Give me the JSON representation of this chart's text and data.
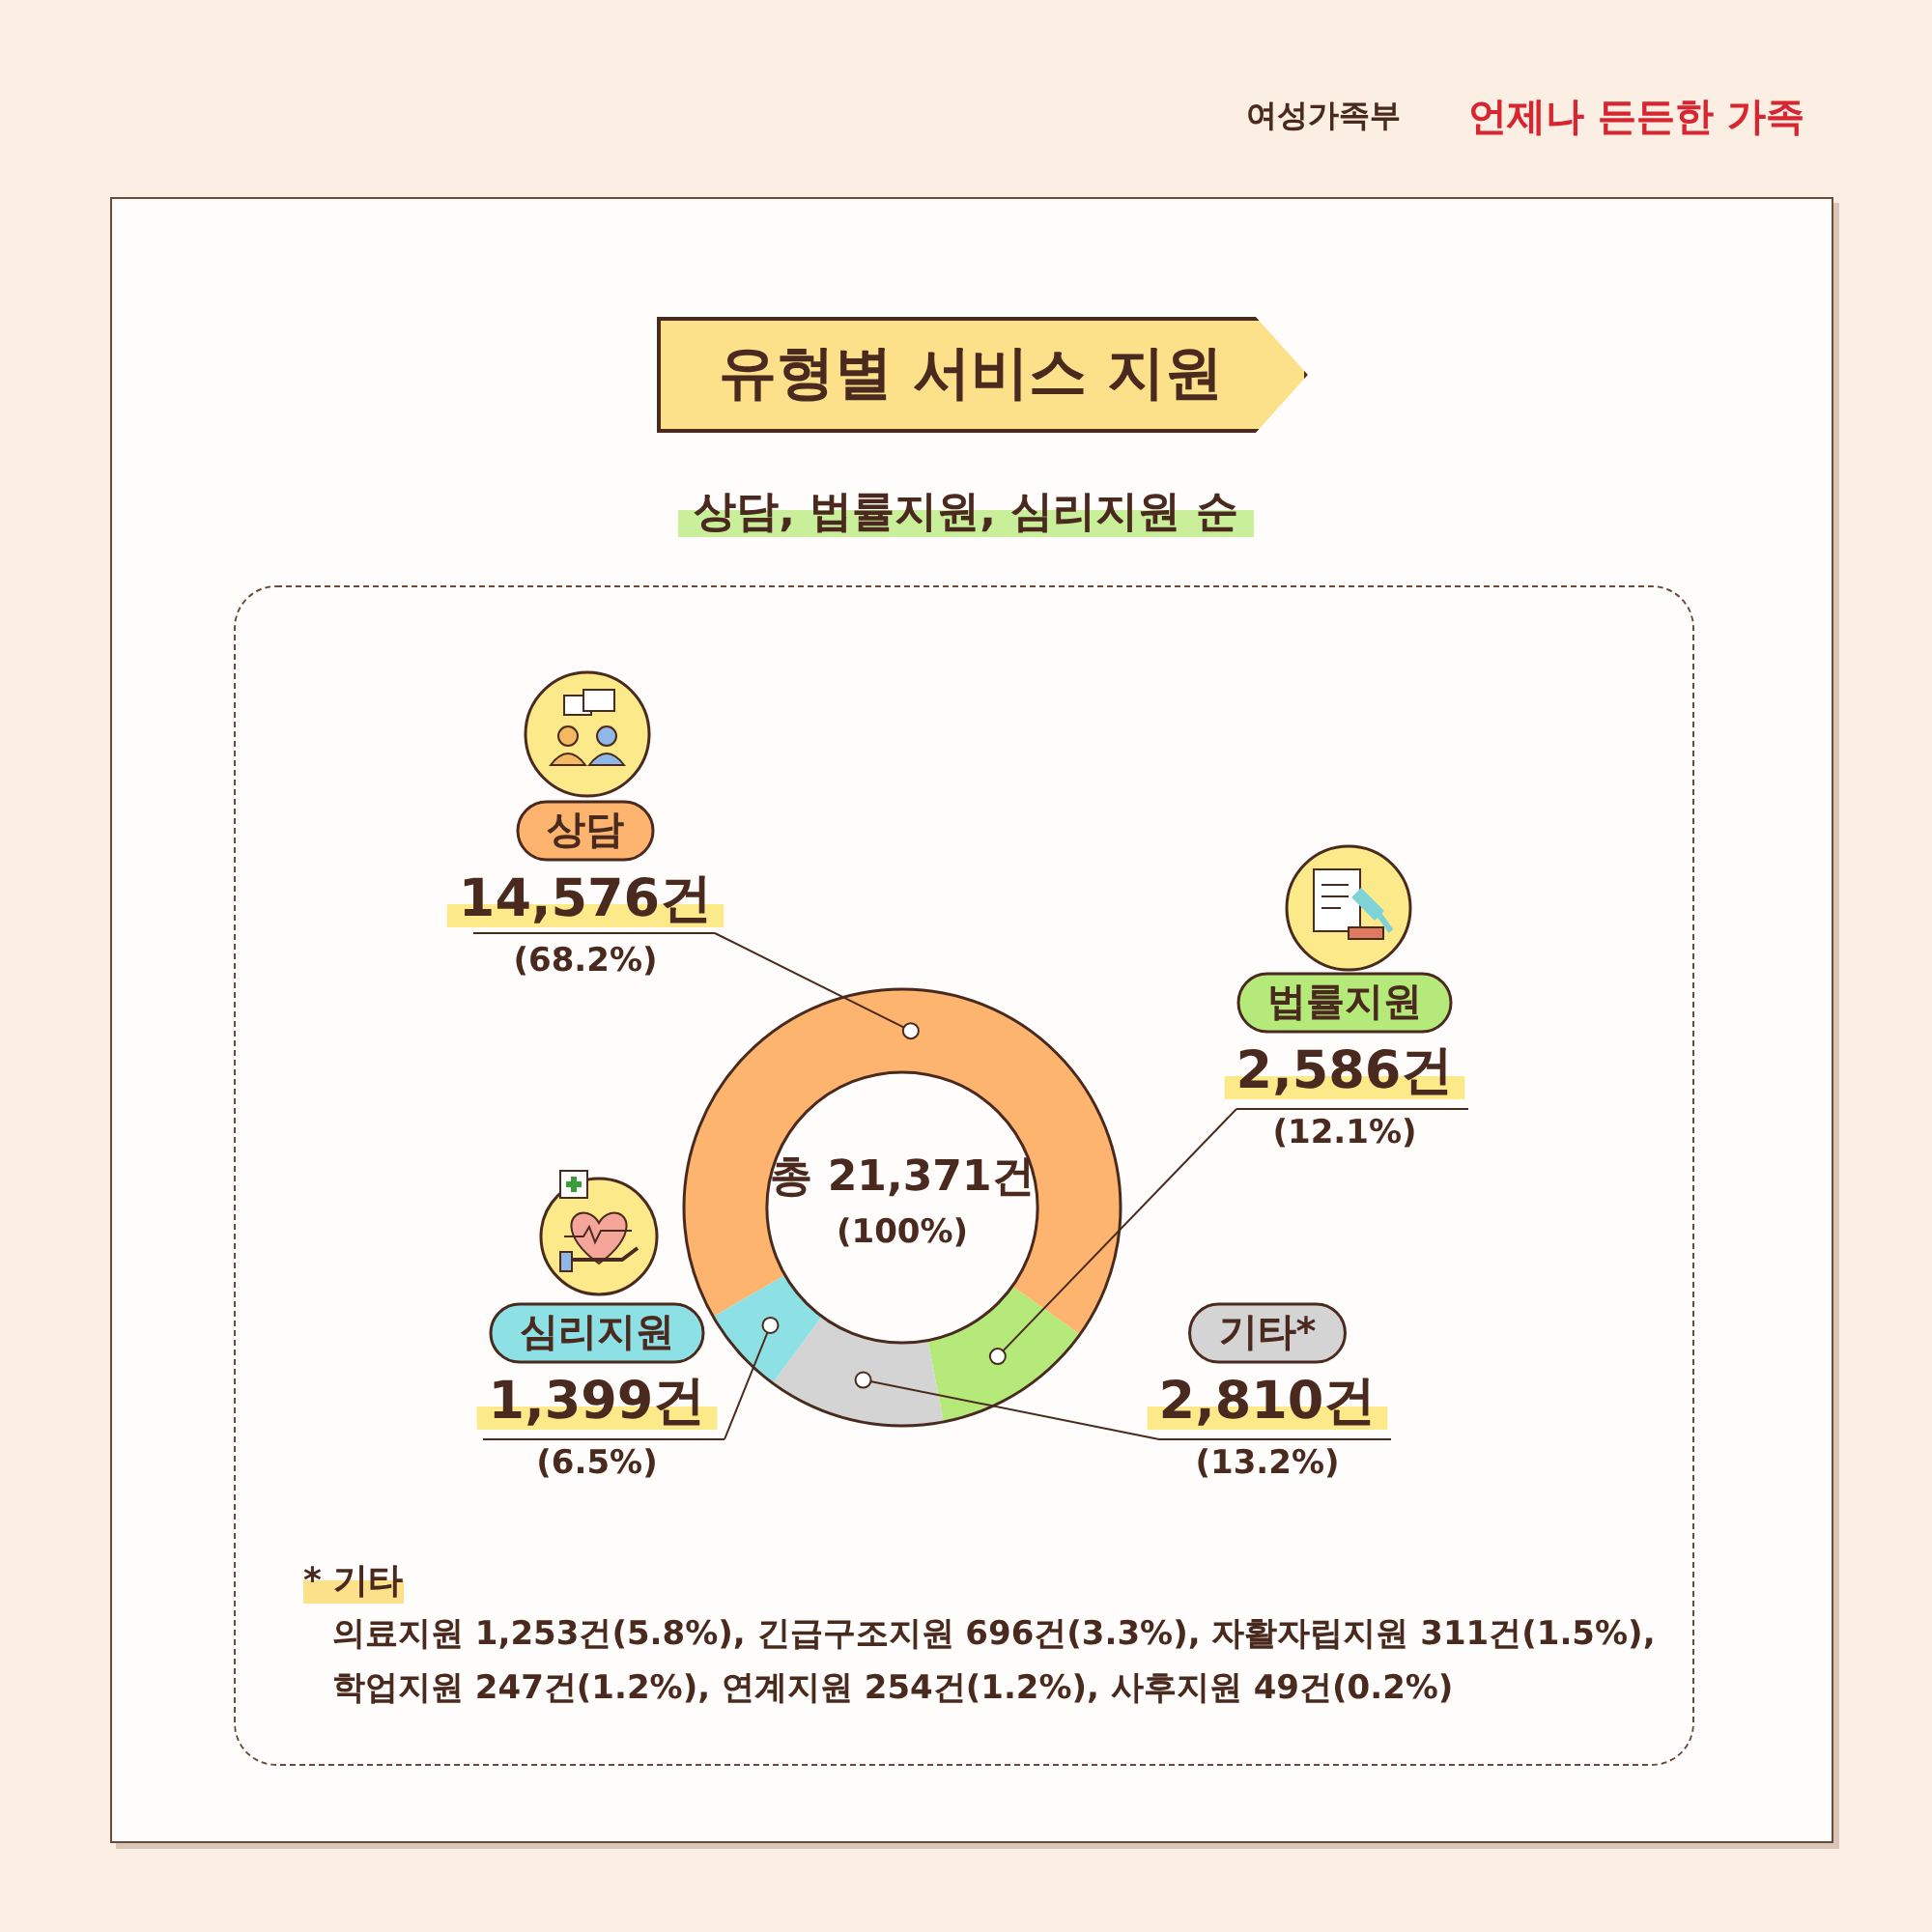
{
  "chart_data": {
    "type": "donut",
    "title": "유형별 서비스 지원",
    "subtitle": "상담, 법률지원, 심리지원 순",
    "categories": [
      "상담",
      "법률지원",
      "기타*",
      "심리지원"
    ],
    "values": [
      14576,
      2586,
      2810,
      1399
    ],
    "colors": [
      "#fdb46f",
      "#b5e97a",
      "#d4d4d4",
      "#8de0e3"
    ],
    "value_labels": [
      "14,576건\n(68.2%)",
      "2,586건\n(12.1%)",
      "2,810건\n(13.2%)",
      "1,399건\n(6.5%)"
    ],
    "annotations": [
      "여성가족부",
      "언제나 든든한 가족",
      "총 21,371건",
      "(100%)",
      "* 기타",
      "의료지원 1,253건(5.8%), 긴급구조지원 696건(3.3%), 자활자립지원 311건(1.5%),",
      "학업지원 247건(1.2%), 연계지원 254건(1.2%), 사후지원 49건(0.2%)"
    ]
  }
}
